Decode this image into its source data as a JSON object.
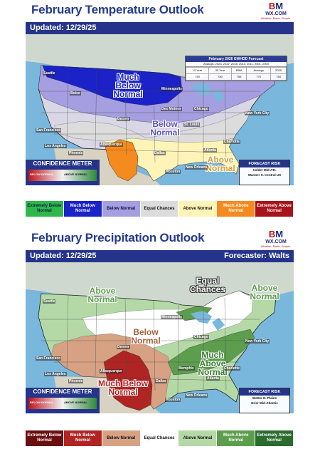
{
  "temperature": {
    "title": "February Temperature Outlook",
    "updated": "Updated: 12/29/25",
    "map_labels": {
      "much_below": "Much Below Normal",
      "below": "Below Normal",
      "above": "Above Normal"
    },
    "cities": [
      "Seattle",
      "Boise",
      "Minneapolis",
      "Denver",
      "Des Moines",
      "Chicago",
      "St. Louis",
      "New York City",
      "San Francisco",
      "Los Angeles",
      "Phoenix",
      "Albuquerque",
      "Dallas",
      "Houston",
      "New Orleans",
      "Atlanta",
      "Charlotte"
    ],
    "forecast_table": {
      "title": "February 2026 GWHDD Forecast",
      "analogs": "Analogs: 2023, 2022, 2018, 2014, 2011, 2001, 2000",
      "headers": [
        "10 Year",
        "30 Year",
        "BAM",
        "Analogs",
        "2025"
      ],
      "values": [
        "749",
        "780",
        "765",
        "770",
        "784"
      ]
    },
    "confidence": {
      "title": "CONFIDENCE METER",
      "left": "BELOW NORMAL",
      "right": "ABOVE NORMAL"
    },
    "risk": {
      "title": "FORECAST RISK",
      "lines": [
        "Colder Mid-ATL",
        "Warmer S. Central US"
      ]
    },
    "legend": [
      {
        "label": "Extremely Below Normal",
        "color": "#2db84a",
        "text": "#0b1e40"
      },
      {
        "label": "Much Below Normal",
        "color": "#1a22c8",
        "text": "#ffffff"
      },
      {
        "label": "Below Normal",
        "color": "#a59ee0",
        "text": "#11113a"
      },
      {
        "label": "Equal Chances",
        "color": "#dcdcdc",
        "text": "#111111"
      },
      {
        "label": "Above Normal",
        "color": "#fff4b8",
        "text": "#111111"
      },
      {
        "label": "Much Above Normal",
        "color": "#f58a1e",
        "text": "#ffffff"
      },
      {
        "label": "Extremely Above Normal",
        "color": "#a8121a",
        "text": "#ffffff"
      }
    ]
  },
  "precipitation": {
    "title": "February Precipitation Outlook",
    "updated": "Updated: 12/29/25",
    "forecaster": "Forecaster: Walts",
    "map_labels": {
      "above_west": "Above Normal",
      "equal": "Equal Chances",
      "above_ne": "Above Normal",
      "below": "Below Normal",
      "much_above": "Much Above Normal",
      "much_below": "Much Below Normal"
    },
    "cities": [
      "Seattle",
      "Minneapolis",
      "Chicago",
      "Denver",
      "San Francisco",
      "Los Angeles",
      "Phoenix",
      "Albuquerque",
      "Dallas",
      "Houston",
      "New Orleans",
      "Memphis",
      "Atlanta",
      "Charlotte",
      "New York City"
    ],
    "confidence": {
      "title": "CONFIDENCE METER",
      "left": "BELOW NORMAL",
      "right": "ABOVE NORMAL"
    },
    "risk": {
      "title": "FORECAST RISK",
      "lines": [
        "Wetter N. Plains",
        "Drier Mid-Atlantic"
      ]
    },
    "legend": [
      {
        "label": "Extremely Below Normal",
        "color": "#6a0f10",
        "text": "#ffffff"
      },
      {
        "label": "Much Below Normal",
        "color": "#b02424",
        "text": "#ffffff"
      },
      {
        "label": "Below Normal",
        "color": "#d7a184",
        "text": "#111111"
      },
      {
        "label": "Equal Chances",
        "color": "#ffffff",
        "text": "#111111"
      },
      {
        "label": "Above Normal",
        "color": "#b4d9a6",
        "text": "#111111"
      },
      {
        "label": "Much Above Normal",
        "color": "#5d9e4e",
        "text": "#ffffff"
      },
      {
        "label": "Extremely Above Normal",
        "color": "#2b6b2e",
        "text": "#ffffff"
      }
    ]
  },
  "logo": {
    "line1": "B",
    "line1b": "M",
    "line2": "WX.COM",
    "tagline": "Weather. Made. Simple."
  }
}
